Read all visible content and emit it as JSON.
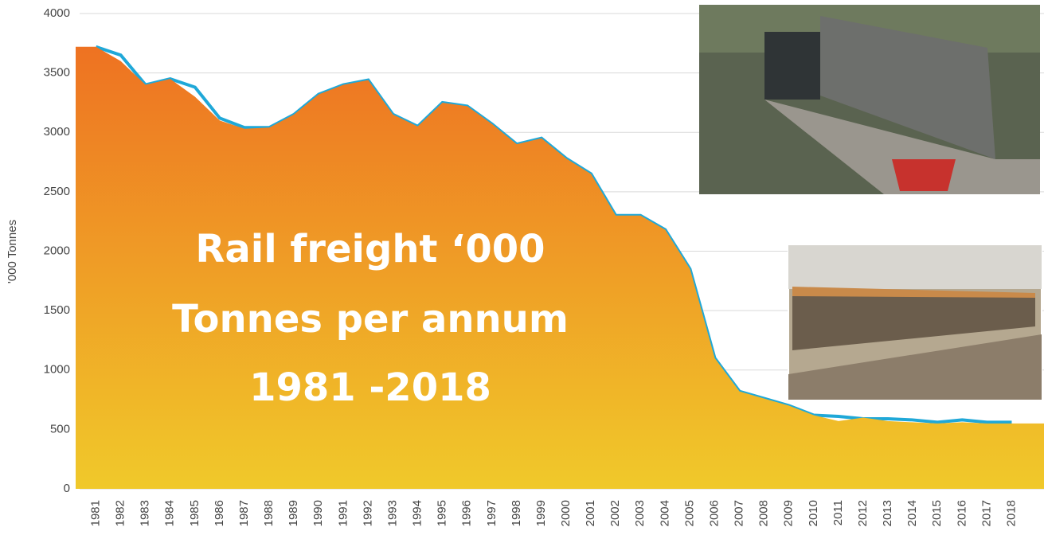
{
  "chart_data": {
    "type": "area",
    "y_label": "'000 Tonnes",
    "annotation": [
      "Rail freight ‘000",
      "Tonnes per annum",
      "1981 -2018"
    ],
    "categories": [
      "1981",
      "1982",
      "1983",
      "1984",
      "1985",
      "1986",
      "1987",
      "1988",
      "1989",
      "1990",
      "1991",
      "1992",
      "1993",
      "1994",
      "1995",
      "1996",
      "1997",
      "1998",
      "1999",
      "2000",
      "2001",
      "2002",
      "2003",
      "2004",
      "2005",
      "2006",
      "2007",
      "2008",
      "2009",
      "2010",
      "2011",
      "2012",
      "2013",
      "2014",
      "2015",
      "2016",
      "2017",
      "2018"
    ],
    "series": [
      {
        "type": "line",
        "color": "#1fa8d8",
        "values": [
          3720,
          3650,
          3400,
          3450,
          3380,
          3120,
          3040,
          3040,
          3150,
          3320,
          3400,
          3440,
          3150,
          3050,
          3250,
          3220,
          3070,
          2900,
          2950,
          2780,
          2650,
          2300,
          2300,
          2180,
          1850,
          1100,
          820,
          760,
          700,
          620,
          610,
          590,
          590,
          580,
          560,
          580,
          560,
          560
        ]
      },
      {
        "type": "area",
        "color": [
          "#ee7222",
          "#f0c92a"
        ],
        "values": [
          3720,
          3600,
          3400,
          3450,
          3300,
          3100,
          3030,
          3040,
          3150,
          3320,
          3400,
          3440,
          3150,
          3050,
          3250,
          3220,
          3070,
          2900,
          2950,
          2780,
          2650,
          2300,
          2300,
          2180,
          1850,
          1100,
          820,
          760,
          700,
          620,
          570,
          600,
          570,
          560,
          550,
          560,
          550,
          550
        ]
      }
    ],
    "ylim": [
      0,
      4000
    ],
    "yticks": [
      0,
      500,
      1000,
      1500,
      2000,
      2500,
      3000,
      3500,
      4000
    ],
    "grid": true
  }
}
